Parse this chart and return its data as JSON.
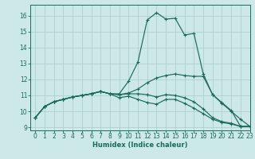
{
  "xlabel": "Humidex (Indice chaleur)",
  "bg_color": "#cde8e8",
  "grid_color": "#aacccc",
  "line_color": "#1a6b5a",
  "xlim": [
    -0.5,
    23
  ],
  "ylim": [
    8.8,
    16.7
  ],
  "yticks": [
    9,
    10,
    11,
    12,
    13,
    14,
    15,
    16
  ],
  "xticks": [
    0,
    1,
    2,
    3,
    4,
    5,
    6,
    7,
    8,
    9,
    10,
    11,
    12,
    13,
    14,
    15,
    16,
    17,
    18,
    19,
    20,
    21,
    22,
    23
  ],
  "curve_top": [
    9.6,
    10.3,
    10.6,
    10.75,
    10.9,
    11.0,
    11.1,
    11.25,
    11.1,
    11.1,
    11.9,
    13.1,
    15.75,
    16.2,
    15.8,
    15.85,
    14.8,
    14.9,
    12.35,
    11.05,
    10.55,
    10.05,
    9.05,
    9.05
  ],
  "curve_mid1": [
    9.6,
    10.3,
    10.6,
    10.75,
    10.9,
    11.0,
    11.1,
    11.25,
    11.1,
    11.05,
    11.15,
    11.4,
    11.8,
    12.1,
    12.25,
    12.35,
    12.25,
    12.2,
    12.2,
    11.05,
    10.5,
    10.0,
    9.5,
    9.05
  ],
  "curve_mid2": [
    9.6,
    10.3,
    10.6,
    10.75,
    10.9,
    11.0,
    11.1,
    11.25,
    11.1,
    11.05,
    11.1,
    11.1,
    11.05,
    10.9,
    11.05,
    11.0,
    10.85,
    10.6,
    10.15,
    9.6,
    9.35,
    9.25,
    9.05,
    9.05
  ],
  "curve_bot": [
    9.6,
    10.3,
    10.6,
    10.75,
    10.9,
    11.0,
    11.1,
    11.25,
    11.1,
    10.85,
    10.95,
    10.75,
    10.55,
    10.45,
    10.75,
    10.75,
    10.5,
    10.2,
    9.85,
    9.5,
    9.3,
    9.2,
    9.05,
    9.05
  ]
}
